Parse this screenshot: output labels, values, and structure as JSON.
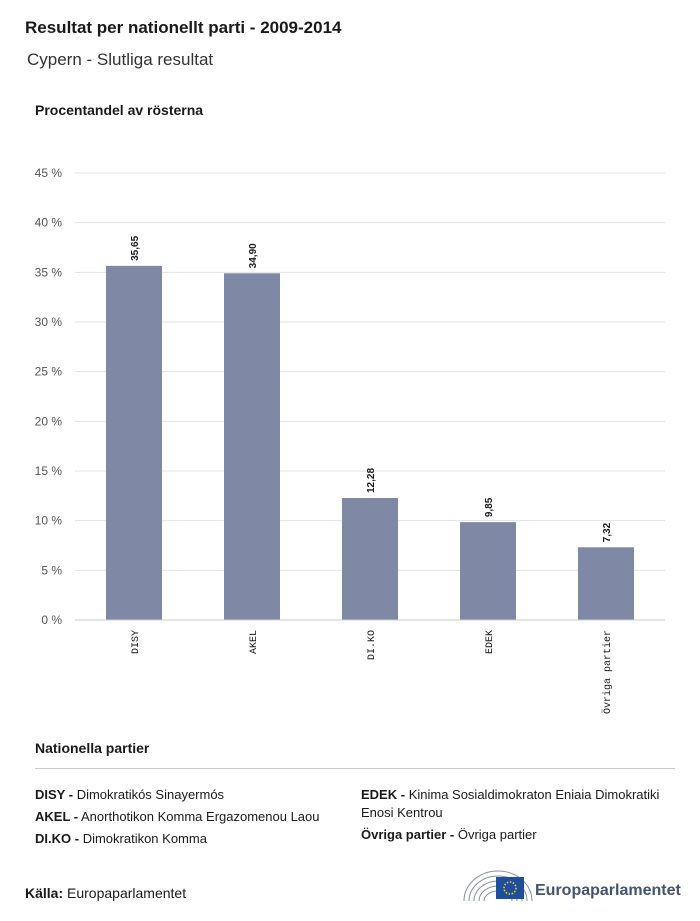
{
  "header": {
    "title": "Resultat per nationellt parti - 2009-2014",
    "subtitle": "Cypern - Slutliga resultat"
  },
  "chart_data": {
    "type": "bar",
    "ylabel": "Procentandel av rösterna",
    "categories": [
      "DISY",
      "AKEL",
      "DI.KO",
      "EDEK",
      "Övriga partier"
    ],
    "values": [
      35.65,
      34.9,
      12.28,
      9.85,
      7.32
    ],
    "value_labels": [
      "35,65",
      "34,90",
      "12,28",
      "9,85",
      "7,32"
    ],
    "ylim": [
      0,
      45
    ],
    "yticks": [
      "0 %",
      "5 %",
      "10 %",
      "15 %",
      "20 %",
      "25 %",
      "30 %",
      "35 %",
      "40 %",
      "45 %"
    ],
    "grid": true,
    "bar_color": "#7f88a5"
  },
  "legend": {
    "title": "Nationella partier",
    "left": [
      {
        "abbr": "DISY -",
        "name": "Dimokratikós Sinayermós"
      },
      {
        "abbr": "AKEL -",
        "name": "Anorthotikon Komma Ergazomenou Laou"
      },
      {
        "abbr": "DI.KO -",
        "name": "Dimokratikon Komma"
      }
    ],
    "right": [
      {
        "abbr": "EDEK -",
        "name": "Kinima Sosialdimokraton Eniaia Dimokratiki Enosi Kentrou"
      },
      {
        "abbr": "Övriga partier -",
        "name": "Övriga partier"
      }
    ]
  },
  "footer": {
    "source_label": "Källa:",
    "source_value": "Europaparlamentet",
    "logo_text": "Europaparlamentet",
    "logo_icon": "european-parliament-hemicycle-logo"
  }
}
